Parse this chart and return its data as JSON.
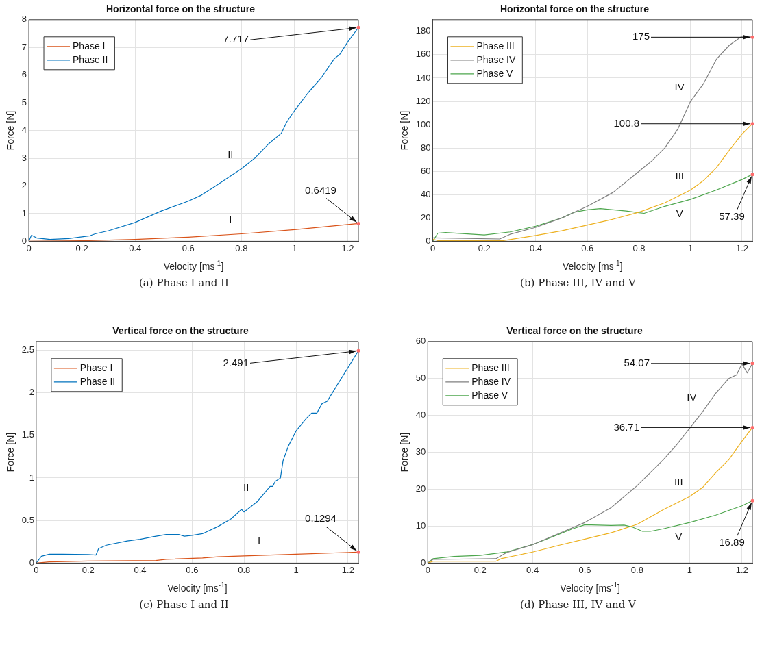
{
  "chart_data": [
    {
      "type": "line",
      "title": "Horizontal force on the structure",
      "xlabel": "Velocity [ms$^{-1}$]",
      "ylabel": "Force [N]",
      "xlim": [
        0,
        1.24
      ],
      "xticks": [
        0,
        0.2,
        0.4,
        0.6,
        0.8,
        1,
        1.2
      ],
      "ylim": [
        0,
        8
      ],
      "yticks": [
        0,
        1,
        2,
        3,
        4,
        5,
        6,
        7,
        8
      ],
      "grid": true,
      "legend": "top left",
      "marker": "none",
      "line_style": "solid",
      "series": [
        {
          "name": "Phase I",
          "color": "#d95319",
          "x": [
            0,
            0.2,
            0.4,
            0.6,
            0.8,
            1.0,
            1.24
          ],
          "values": [
            0,
            0.02,
            0.07,
            0.15,
            0.27,
            0.42,
            0.6419
          ]
        },
        {
          "name": "Phase II",
          "color": "#0072bd",
          "x": [
            0,
            0.01,
            0.03,
            0.08,
            0.15,
            0.2,
            0.23,
            0.25,
            0.3,
            0.4,
            0.5,
            0.6,
            0.65,
            0.7,
            0.8,
            0.85,
            0.9,
            0.95,
            0.97,
            1.0,
            1.05,
            1.1,
            1.15,
            1.17,
            1.2,
            1.24
          ],
          "values": [
            0,
            0.22,
            0.12,
            0.07,
            0.1,
            0.16,
            0.2,
            0.27,
            0.38,
            0.68,
            1.1,
            1.45,
            1.67,
            1.98,
            2.62,
            3.0,
            3.5,
            3.9,
            4.3,
            4.72,
            5.35,
            5.9,
            6.6,
            6.75,
            7.2,
            7.717
          ]
        }
      ],
      "annotations": [
        {
          "text": "7.717",
          "x": 1.24,
          "y": 7.717
        },
        {
          "text": "0.6419",
          "x": 1.24,
          "y": 0.6419
        },
        {
          "text": "II",
          "x": 0.8,
          "y": 2.62
        },
        {
          "text": "I",
          "x": 0.8,
          "y": 0.27
        },
        "(a) Phase I and II"
      ]
    },
    {
      "type": "line",
      "title": "Horizontal force on the structure",
      "xlabel": "Velocity [ms$^{-1}$]",
      "ylabel": "Force [N]",
      "xlim": [
        0,
        1.24
      ],
      "xticks": [
        0,
        0.2,
        0.4,
        0.6,
        0.8,
        1,
        1.2
      ],
      "ylim": [
        0,
        190
      ],
      "yticks": [
        0,
        20,
        40,
        60,
        80,
        100,
        120,
        140,
        160,
        180
      ],
      "grid": true,
      "legend": "top left",
      "marker": "none",
      "line_style": "solid",
      "series": [
        {
          "name": "Phase III",
          "color": "#edb120",
          "x": [
            0,
            0.02,
            0.27,
            0.3,
            0.4,
            0.5,
            0.6,
            0.7,
            0.8,
            0.9,
            1.0,
            1.05,
            1.1,
            1.15,
            1.2,
            1.24
          ],
          "values": [
            2,
            0.5,
            0.5,
            1.5,
            5,
            9,
            14,
            19,
            25,
            33,
            44,
            52,
            63,
            78,
            92,
            100.8
          ]
        },
        {
          "name": "Phase IV",
          "color": "#7f7f7f",
          "x": [
            0,
            0.26,
            0.3,
            0.4,
            0.5,
            0.6,
            0.7,
            0.8,
            0.85,
            0.9,
            0.95,
            1.0,
            1.05,
            1.1,
            1.15,
            1.2,
            1.24
          ],
          "values": [
            3,
            2,
            6,
            12,
            20,
            30,
            42,
            60,
            69,
            80,
            96,
            120,
            135,
            156,
            168,
            176,
            175
          ]
        },
        {
          "name": "Phase V",
          "color": "#4da64d",
          "x": [
            0,
            0.02,
            0.05,
            0.2,
            0.3,
            0.4,
            0.5,
            0.55,
            0.6,
            0.65,
            0.7,
            0.75,
            0.8,
            0.82,
            0.9,
            1.0,
            1.1,
            1.2,
            1.24
          ],
          "values": [
            0,
            7,
            7.5,
            5.5,
            8,
            13,
            20,
            25,
            27,
            28,
            27,
            26,
            24.5,
            24,
            30,
            36,
            44,
            53,
            57.39
          ]
        }
      ],
      "annotations": [
        {
          "text": "175",
          "x": 1.24,
          "y": 175
        },
        {
          "text": "100.8",
          "x": 1.24,
          "y": 100.8
        },
        {
          "text": "57.39",
          "x": 1.24,
          "y": 57.39
        },
        {
          "text": "IV",
          "x": 1.0,
          "y": 120
        },
        {
          "text": "III",
          "x": 1.0,
          "y": 44
        },
        {
          "text": "V",
          "x": 1.0,
          "y": 36
        },
        "(b) Phase III, IV and V"
      ]
    },
    {
      "type": "line",
      "title": "Vertical force on the structure",
      "xlabel": "Velocity [ms$^{-1}$]",
      "ylabel": "Force [N]",
      "xlim": [
        0,
        1.24
      ],
      "xticks": [
        0,
        0.2,
        0.4,
        0.6,
        0.8,
        1,
        1.2
      ],
      "ylim": [
        0,
        2.6
      ],
      "yticks": [
        0,
        0.5,
        1,
        1.5,
        2,
        2.5
      ],
      "grid": true,
      "legend": "top left",
      "marker": "none",
      "line_style": "solid",
      "series": [
        {
          "name": "Phase I",
          "color": "#d95319",
          "x": [
            0,
            0.05,
            0.2,
            0.46,
            0.5,
            0.64,
            0.7,
            0.9,
            1.0,
            1.24
          ],
          "values": [
            0,
            0.015,
            0.025,
            0.03,
            0.045,
            0.06,
            0.075,
            0.095,
            0.105,
            0.1294
          ]
        },
        {
          "name": "Phase II",
          "color": "#0072bd",
          "x": [
            0,
            0.02,
            0.05,
            0.1,
            0.2,
            0.23,
            0.24,
            0.27,
            0.35,
            0.4,
            0.45,
            0.5,
            0.55,
            0.57,
            0.6,
            0.64,
            0.7,
            0.75,
            0.79,
            0.8,
            0.85,
            0.9,
            0.91,
            0.92,
            0.94,
            0.95,
            0.97,
            1.0,
            1.04,
            1.06,
            1.08,
            1.1,
            1.12,
            1.24
          ],
          "values": [
            0,
            0.08,
            0.105,
            0.105,
            0.1,
            0.095,
            0.17,
            0.21,
            0.26,
            0.28,
            0.31,
            0.335,
            0.335,
            0.315,
            0.325,
            0.345,
            0.43,
            0.52,
            0.63,
            0.6,
            0.72,
            0.9,
            0.9,
            0.96,
            1.0,
            1.2,
            1.37,
            1.55,
            1.7,
            1.76,
            1.76,
            1.87,
            1.9,
            2.491
          ]
        }
      ],
      "annotations": [
        {
          "text": "2.491",
          "x": 1.24,
          "y": 2.491
        },
        {
          "text": "0.1294",
          "x": 1.24,
          "y": 0.1294
        },
        {
          "text": "II",
          "x": 0.85,
          "y": 0.72
        },
        {
          "text": "I",
          "x": 0.9,
          "y": 0.095
        },
        "(c) Phase I and II"
      ]
    },
    {
      "type": "line",
      "title": "Vertical force on the structure",
      "xlabel": "Velocity [ms$^{-1}$]",
      "ylabel": "Force [N]",
      "xlim": [
        0,
        1.24
      ],
      "xticks": [
        0,
        0.2,
        0.4,
        0.6,
        0.8,
        1,
        1.2
      ],
      "ylim": [
        0,
        60
      ],
      "yticks": [
        0,
        10,
        20,
        30,
        40,
        50,
        60
      ],
      "grid": true,
      "legend": "top left",
      "marker": "none",
      "line_style": "solid",
      "series": [
        {
          "name": "Phase III",
          "color": "#edb120",
          "x": [
            0,
            0.02,
            0.26,
            0.28,
            0.4,
            0.5,
            0.6,
            0.7,
            0.8,
            0.9,
            1.0,
            1.05,
            1.1,
            1.15,
            1.2,
            1.24
          ],
          "values": [
            0,
            0.5,
            0.5,
            1.2,
            3,
            4.8,
            6.5,
            8.2,
            10.5,
            14.5,
            18,
            20.5,
            24.5,
            28,
            33,
            36.71
          ]
        },
        {
          "name": "Phase IV",
          "color": "#7f7f7f",
          "x": [
            0,
            0.02,
            0.26,
            0.3,
            0.4,
            0.5,
            0.6,
            0.7,
            0.8,
            0.9,
            0.95,
            1.0,
            1.05,
            1.1,
            1.15,
            1.18,
            1.2,
            1.22,
            1.24
          ],
          "values": [
            0,
            1,
            1.2,
            2.8,
            5,
            8,
            11,
            15,
            21,
            28,
            32,
            36.5,
            41,
            46,
            50,
            51,
            54,
            51.5,
            54.07
          ]
        },
        {
          "name": "Phase V",
          "color": "#4da64d",
          "x": [
            0,
            0.02,
            0.1,
            0.2,
            0.3,
            0.4,
            0.5,
            0.55,
            0.6,
            0.65,
            0.7,
            0.75,
            0.78,
            0.82,
            0.85,
            0.9,
            1.0,
            1.1,
            1.2,
            1.24
          ],
          "values": [
            0,
            1.2,
            1.8,
            2.1,
            3,
            5,
            7.8,
            9.2,
            10.4,
            10.3,
            10.2,
            10.3,
            9.8,
            8.6,
            8.6,
            9.3,
            11,
            13,
            15.5,
            16.89
          ]
        }
      ],
      "annotations": [
        {
          "text": "54.07",
          "x": 1.24,
          "y": 54.07
        },
        {
          "text": "36.71",
          "x": 1.24,
          "y": 36.71
        },
        {
          "text": "16.89",
          "x": 1.24,
          "y": 16.89
        },
        {
          "text": "IV",
          "x": 1.05,
          "y": 41
        },
        {
          "text": "III",
          "x": 1.0,
          "y": 18
        },
        {
          "text": "V",
          "x": 1.0,
          "y": 11
        },
        "(d) Phase III, IV and V"
      ]
    }
  ]
}
